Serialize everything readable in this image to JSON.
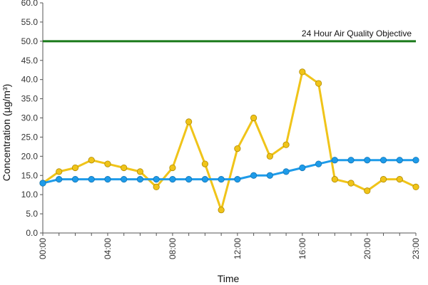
{
  "chart_data": {
    "type": "line",
    "xlabel": "Time",
    "ylabel": "Concentration (µg/m³)",
    "ylim": [
      0,
      60
    ],
    "ytick_step": 5,
    "ytick_labels": [
      "0.0",
      "5.0",
      "10.0",
      "15.0",
      "20.0",
      "25.0",
      "30.0",
      "35.0",
      "40.0",
      "45.0",
      "50.0",
      "55.0",
      "60.0"
    ],
    "x": [
      "00:00",
      "01:00",
      "02:00",
      "03:00",
      "04:00",
      "05:00",
      "06:00",
      "07:00",
      "08:00",
      "09:00",
      "10:00",
      "11:00",
      "12:00",
      "13:00",
      "14:00",
      "15:00",
      "16:00",
      "17:00",
      "18:00",
      "19:00",
      "20:00",
      "21:00",
      "22:00",
      "23:00"
    ],
    "xtick_labels": [
      "00:00",
      "04:00",
      "08:00",
      "12:00",
      "16:00",
      "20:00",
      "23:00"
    ],
    "series": [
      {
        "color": "#f0c419",
        "values": [
          13,
          16,
          17,
          19,
          18,
          17,
          16,
          12,
          17,
          29,
          18,
          6,
          22,
          30,
          20,
          23,
          42,
          39,
          14,
          13,
          11,
          14,
          14,
          12
        ]
      },
      {
        "color": "#1e9be9",
        "values": [
          13,
          14,
          14,
          14,
          14,
          14,
          14,
          14,
          14,
          14,
          14,
          14,
          14,
          15,
          15,
          16,
          17,
          18,
          19,
          19,
          19,
          19,
          19,
          19
        ]
      }
    ],
    "objective": {
      "value": 50,
      "label": "24 Hour Air Quality Objective",
      "color": "#1a7a1a"
    },
    "grid": false,
    "legend": "none"
  }
}
